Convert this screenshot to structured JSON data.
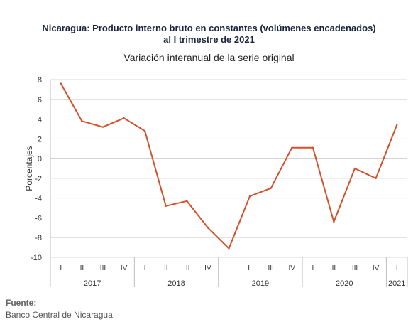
{
  "chart_data": {
    "type": "line",
    "title_line1": "Nicaragua: Producto interno bruto en constantes (volúmenes encadenados)",
    "title_line2": "al I trimestre de 2021",
    "subtitle": "Variación interanual de la serie original",
    "ylabel": "Porcentajes",
    "ylim": [
      -10,
      8
    ],
    "yticks": [
      "8",
      "6",
      "4",
      "2",
      "0",
      "-2",
      "-4",
      "-6",
      "-8",
      "-10"
    ],
    "grid": true,
    "categories": [
      "I",
      "II",
      "III",
      "IV",
      "I",
      "II",
      "III",
      "IV",
      "I",
      "II",
      "III",
      "IV",
      "I",
      "II",
      "III",
      "IV",
      "I"
    ],
    "years": [
      {
        "label": "2017",
        "quarters": 4
      },
      {
        "label": "2018",
        "quarters": 4
      },
      {
        "label": "2019",
        "quarters": 4
      },
      {
        "label": "2020",
        "quarters": 4
      },
      {
        "label": "2021",
        "quarters": 1
      }
    ],
    "series": [
      {
        "values": [
          7.6,
          3.8,
          3.2,
          4.1,
          2.8,
          -4.8,
          -4.3,
          -7.0,
          -9.1,
          -3.8,
          -3.0,
          1.1,
          1.1,
          -6.4,
          -1.0,
          -2.0,
          3.4
        ],
        "color": "#d2502a"
      }
    ]
  },
  "source": {
    "label": "Fuente:",
    "text": "Banco Central de Nicaragua"
  }
}
